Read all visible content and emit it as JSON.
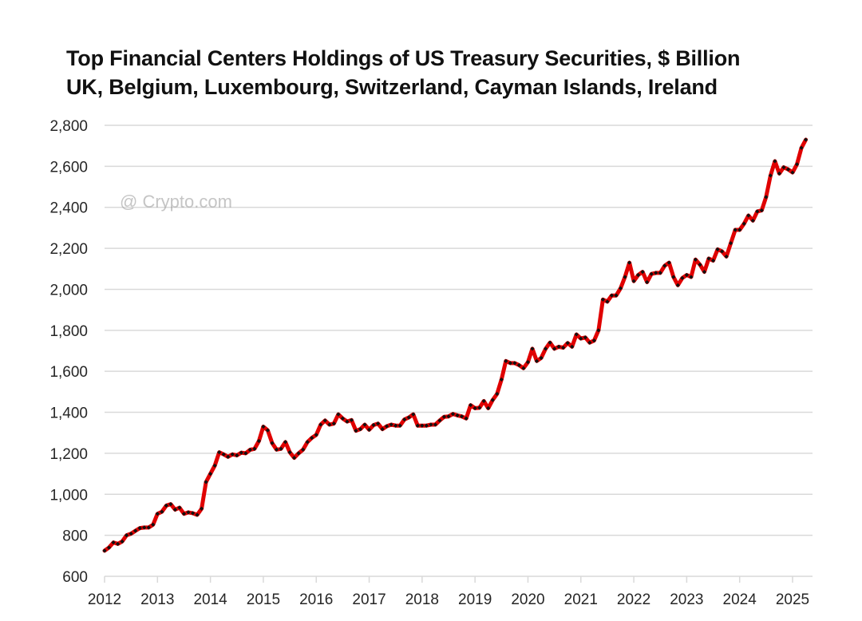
{
  "chart_data": {
    "type": "line",
    "title": "Top Financial Centers Holdings of US Treasury Securities, $ Billion",
    "subtitle": "UK, Belgium, Luxembourg, Switzerland, Cayman Islands, Ireland",
    "xlabel": "",
    "ylabel": "",
    "ylim": [
      600,
      2800
    ],
    "xlim": [
      2012,
      2025.33
    ],
    "grid": true,
    "legend": "none",
    "y_ticks": [
      "600",
      "800",
      "1,000",
      "1,200",
      "1,400",
      "1,600",
      "1,800",
      "2,000",
      "2,200",
      "2,400",
      "2,600",
      "2,800"
    ],
    "x_ticks": [
      "2012",
      "2013",
      "2014",
      "2015",
      "2016",
      "2017",
      "2018",
      "2019",
      "2020",
      "2021",
      "2022",
      "2023",
      "2024",
      "2025"
    ],
    "series": [
      {
        "name": "Holdings of US Treasury Securities ($ Billion)",
        "color": "#e00000",
        "marker_color": "#111111",
        "start": "2012-01",
        "frequency": "monthly",
        "values": [
          725,
          740,
          765,
          758,
          770,
          800,
          808,
          822,
          835,
          838,
          838,
          852,
          905,
          915,
          945,
          952,
          925,
          935,
          905,
          912,
          908,
          900,
          930,
          1060,
          1100,
          1140,
          1205,
          1195,
          1183,
          1195,
          1190,
          1203,
          1200,
          1217,
          1222,
          1260,
          1330,
          1312,
          1250,
          1218,
          1222,
          1255,
          1205,
          1178,
          1200,
          1218,
          1255,
          1275,
          1290,
          1340,
          1360,
          1340,
          1345,
          1390,
          1370,
          1355,
          1362,
          1310,
          1318,
          1340,
          1315,
          1338,
          1345,
          1318,
          1332,
          1340,
          1335,
          1335,
          1365,
          1375,
          1390,
          1335,
          1335,
          1335,
          1340,
          1340,
          1360,
          1378,
          1380,
          1392,
          1385,
          1380,
          1370,
          1435,
          1420,
          1422,
          1455,
          1420,
          1460,
          1490,
          1560,
          1650,
          1640,
          1640,
          1630,
          1615,
          1645,
          1710,
          1650,
          1665,
          1710,
          1740,
          1710,
          1720,
          1715,
          1738,
          1720,
          1780,
          1760,
          1765,
          1740,
          1750,
          1800,
          1950,
          1940,
          1970,
          1970,
          2005,
          2060,
          2130,
          2040,
          2070,
          2085,
          2035,
          2075,
          2080,
          2080,
          2115,
          2130,
          2060,
          2020,
          2055,
          2070,
          2060,
          2145,
          2120,
          2085,
          2150,
          2140,
          2195,
          2185,
          2160,
          2225,
          2290,
          2290,
          2320,
          2360,
          2335,
          2380,
          2385,
          2450,
          2555,
          2625,
          2565,
          2595,
          2585,
          2570,
          2610,
          2690,
          2730
        ]
      }
    ]
  },
  "watermark": "@ Crypto.com"
}
